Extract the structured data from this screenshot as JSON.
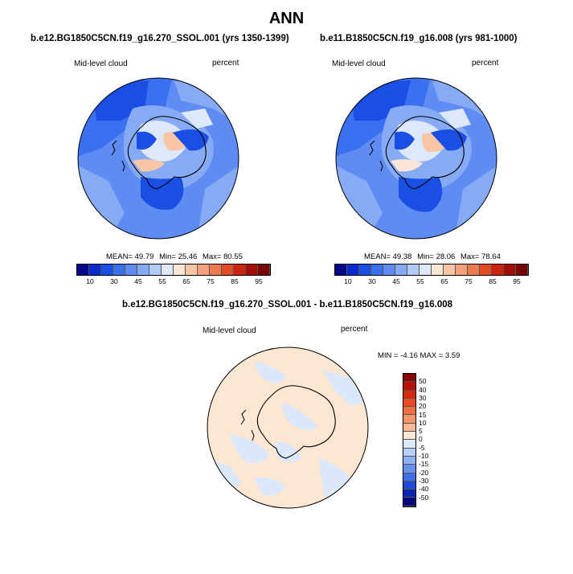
{
  "title": "ANN",
  "panels": [
    {
      "case": "b.e12.BG1850C5CN.f19_g16.270_SSOL.001 (yrs 1350-1399)",
      "variable": "Mid-level cloud",
      "units": "percent",
      "mean_label": "MEAN=",
      "mean": "49.79",
      "min_label": "Min=",
      "min": "25.46",
      "max_label": "Max=",
      "max": "80.55"
    },
    {
      "case": "b.e11.B1850C5CN.f19_g16.008 (yrs 981-1000)",
      "variable": "Mid-level cloud",
      "units": "percent",
      "mean_label": "MEAN=",
      "mean": "49.38",
      "min_label": "Min=",
      "min": "28.06",
      "max_label": "Max=",
      "max": "78.64"
    }
  ],
  "colorbar": {
    "labels": [
      "10",
      "30",
      "45",
      "55",
      "65",
      "75",
      "85",
      "95"
    ],
    "colors": [
      "#08088c",
      "#0a2ad0",
      "#1a4fe6",
      "#3a6ff0",
      "#5e8cf2",
      "#86aaf4",
      "#b3cbf8",
      "#dde9fb",
      "#fbe5d6",
      "#f8c6a6",
      "#f4a27c",
      "#ee7a50",
      "#e24a28",
      "#cc2410",
      "#a20c06",
      "#780404"
    ]
  },
  "diff": {
    "title": "b.e12.BG1850C5CN.f19_g16.270_SSOL.001 - b.e11.B1850C5CN.f19_g16.008",
    "variable": "Mid-level cloud",
    "units": "percent",
    "stats": "MIN =  -4.16 MAX =   3.59",
    "colorbar_labels": [
      "50",
      "40",
      "30",
      "20",
      "15",
      "10",
      "5",
      "0",
      "-5",
      "-10",
      "-15",
      "-20",
      "-30",
      "-40",
      "-50"
    ],
    "colorbar_colors": [
      "#8a0606",
      "#b51208",
      "#d8280e",
      "#ec4a22",
      "#f4703e",
      "#f6956a",
      "#f8b896",
      "#fde6d2",
      "#dbe8fb",
      "#b8cff7",
      "#8fb2f2",
      "#6690ee",
      "#3f6ee8",
      "#2048d8",
      "#0a24b0",
      "#06087a"
    ]
  }
}
